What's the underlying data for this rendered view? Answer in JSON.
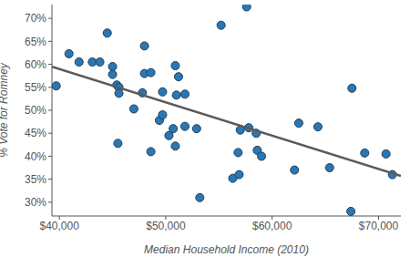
{
  "chart_data": {
    "type": "scatter",
    "x_label": "Median Household Income (2010)",
    "y_label": "% Vote for Romney",
    "x": [
      39700,
      40900,
      41850,
      43100,
      43800,
      44500,
      45000,
      45000,
      45400,
      45600,
      45500,
      45600,
      47000,
      47800,
      48000,
      48000,
      48600,
      48600,
      49400,
      49700,
      49700,
      50300,
      50700,
      50900,
      51000,
      50900,
      51200,
      51800,
      51800,
      52900,
      53200,
      55200,
      56300,
      56800,
      57000,
      56900,
      57600,
      57800,
      58500,
      58600,
      59000,
      62100,
      62500,
      64300,
      65400,
      67500,
      67400,
      68700,
      70700,
      71300
    ],
    "values": [
      55.3,
      62.3,
      60.5,
      60.5,
      60.5,
      66.8,
      59.5,
      57.8,
      55.5,
      55.0,
      42.8,
      53.7,
      50.3,
      53.8,
      58.0,
      64.0,
      58.2,
      41.0,
      47.8,
      54.0,
      49.0,
      44.5,
      46.0,
      59.7,
      53.3,
      42.2,
      57.3,
      53.5,
      46.5,
      46.0,
      31.0,
      68.5,
      35.2,
      40.8,
      45.7,
      36.0,
      72.5,
      46.2,
      45.0,
      41.3,
      40.0,
      37.0,
      47.2,
      46.4,
      37.5,
      54.8,
      28.0,
      40.7,
      40.5,
      36.0
    ],
    "color": "#2b77b3",
    "marker": "circle",
    "xlim": [
      39300,
      72100
    ],
    "ylim": [
      27,
      73
    ],
    "xticks": [
      {
        "value": 40000,
        "label": "$40,000"
      },
      {
        "value": 50000,
        "label": "$50,000"
      },
      {
        "value": 60000,
        "label": "$60,000"
      },
      {
        "value": 70000,
        "label": "$70,000"
      }
    ],
    "yticks": [
      {
        "value": 30,
        "label": "30%"
      },
      {
        "value": 35,
        "label": "35%"
      },
      {
        "value": 40,
        "label": "40%"
      },
      {
        "value": 45,
        "label": "45%"
      },
      {
        "value": 50,
        "label": "50%"
      },
      {
        "value": 55,
        "label": "55%"
      },
      {
        "value": 60,
        "label": "60%"
      },
      {
        "value": 65,
        "label": "65%"
      },
      {
        "value": 70,
        "label": "70%"
      }
    ],
    "grid": false,
    "trend_line": {
      "x": [
        39300,
        72100
      ],
      "y": [
        59.5,
        35.7
      ],
      "color": "#5a5a5a",
      "line_style": "solid"
    }
  }
}
